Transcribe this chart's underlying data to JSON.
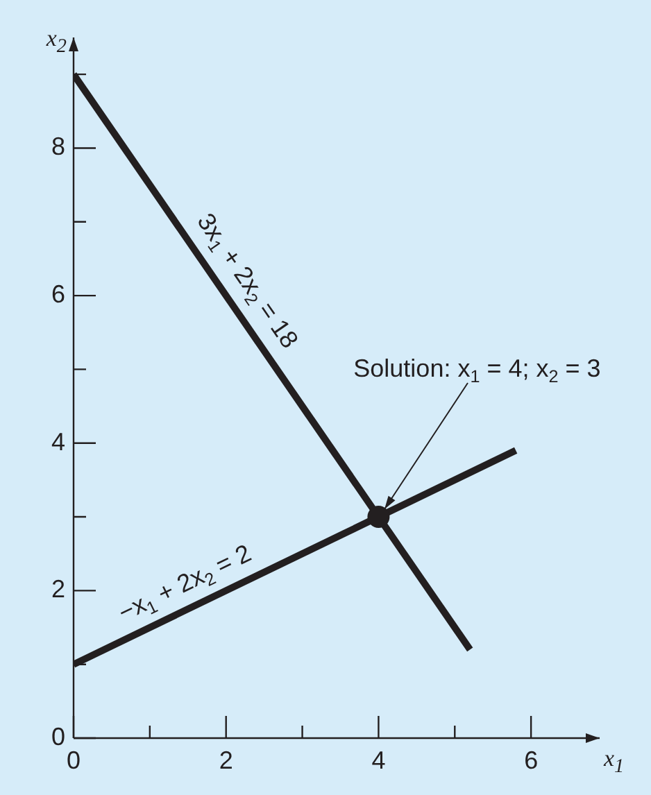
{
  "chart_data": {
    "type": "line",
    "xlabel": "x$_{1}$",
    "ylabel": "x$_{2}$",
    "xlim": [
      0,
      6.9
    ],
    "ylim": [
      0,
      9.5
    ],
    "xticks": [
      0,
      {
        "value": 1,
        "label": null
      },
      2,
      {
        "value": 3,
        "label": null
      },
      4,
      {
        "value": 5,
        "label": null
      },
      6
    ],
    "yticks": [
      0,
      {
        "value": 1,
        "label": null
      },
      2,
      {
        "value": 3,
        "label": null
      },
      4,
      {
        "value": 5,
        "label": null
      },
      6,
      {
        "value": 7,
        "label": null
      },
      8,
      {
        "value": 9,
        "label": null
      }
    ],
    "grid": false,
    "legend": false,
    "series": [
      {
        "type": "line",
        "color": "#231f20",
        "x": [
          0,
          5.2
        ],
        "values": [
          9,
          1.2
        ],
        "marker": "none",
        "line_style": "solid"
      },
      {
        "type": "line",
        "color": "#231f20",
        "x": [
          0,
          5.8
        ],
        "values": [
          1,
          3.9
        ],
        "marker": "none",
        "line_style": "solid"
      },
      {
        "type": "scatter",
        "color": "#231f20",
        "x": [
          4
        ],
        "values": [
          3
        ],
        "marker": "circle"
      }
    ],
    "annotations": [
      {
        "text": "3x$_{1}$ + 2x$_{2}$ = 18",
        "x": 2,
        "y": 6
      },
      {
        "text": "−x$_{1}$ + 2x$_{2}$ = 2",
        "x": 1.6,
        "y": 1.8
      },
      {
        "text": "Solution: x$_{1}$ = 4; x$_{2}$ = 3",
        "x": 4,
        "y": 3
      }
    ]
  }
}
